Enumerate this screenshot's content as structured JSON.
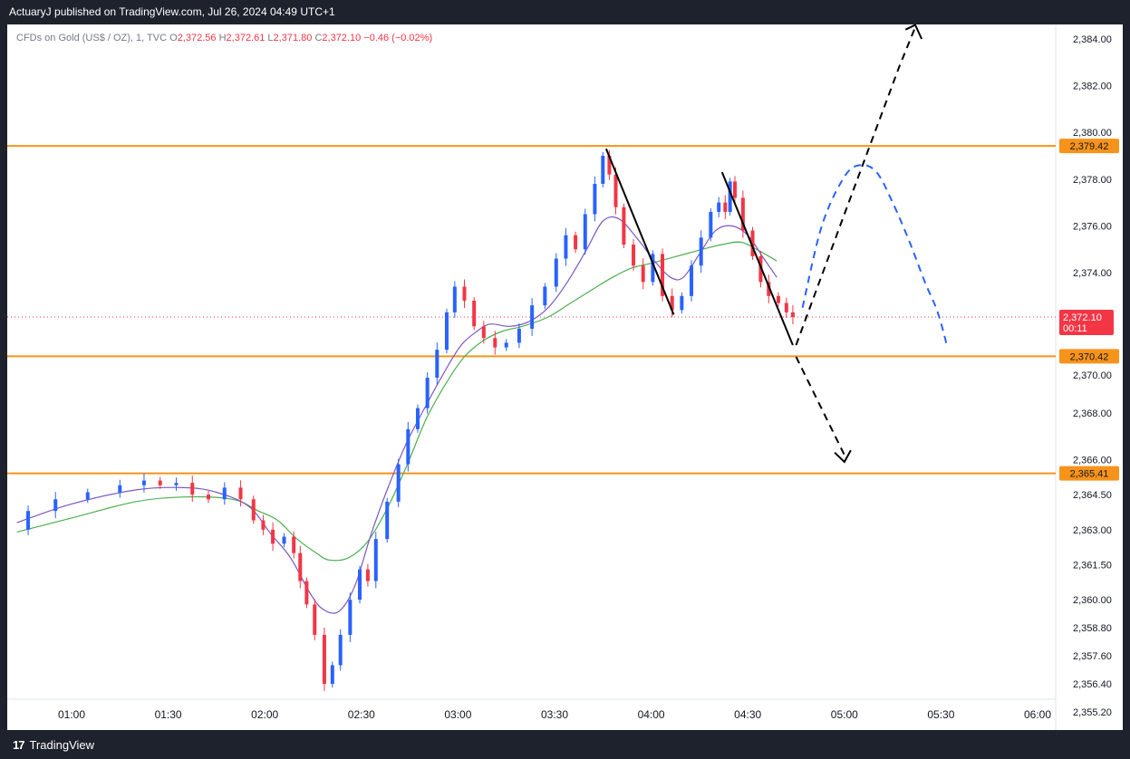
{
  "header": {
    "publisher_line": "ActuaryJ published on TradingView.com, Jul 26, 2024 04:49 UTC+1"
  },
  "legend": {
    "symbol": "CFDs on Gold (US$ / OZ), 1, TVC",
    "open_label": "O",
    "open": "2,372.56",
    "high_label": "H",
    "high": "2,372.61",
    "low_label": "L",
    "low": "2,371.80",
    "close_label": "C",
    "close": "2,372.10",
    "change": "−0.46 (−0.02%)"
  },
  "footer": {
    "brand": "TradingView",
    "logo_text": "17"
  },
  "colors": {
    "up": "#2962ff",
    "down": "#f23645",
    "level": "#f7931a",
    "ma_fast": "#7e57c2",
    "ma_slow": "#4caf50",
    "price_tag": "#f23645"
  },
  "chart_data": {
    "type": "line",
    "y_axis_ticks": [
      "2,384.00",
      "2,382.00",
      "2,380.00",
      "2,378.00",
      "2,376.00",
      "2,374.00",
      "2,370.00",
      "2,368.00",
      "2,366.00",
      "2,364.50",
      "2,363.00",
      "2,361.50",
      "2,360.00",
      "2,358.80",
      "2,357.60",
      "2,356.40",
      "2,355.20"
    ],
    "y_axis_tick_values": [
      2384.0,
      2382.0,
      2380.0,
      2378.0,
      2376.0,
      2374.0,
      2370.0,
      2368.0,
      2366.0,
      2364.5,
      2363.0,
      2361.5,
      2360.0,
      2358.8,
      2357.6,
      2356.4,
      2355.2
    ],
    "x_axis_ticks": [
      "01:00",
      "01:30",
      "02:00",
      "02:30",
      "03:00",
      "03:30",
      "04:00",
      "04:30",
      "05:00",
      "05:30",
      "06:00"
    ],
    "x_axis_tick_minutes": [
      60,
      90,
      120,
      150,
      180,
      210,
      240,
      270,
      300,
      330,
      360
    ],
    "levels": [
      {
        "label": "2,379.42",
        "value": 2379.42
      },
      {
        "label": "2,370.42",
        "value": 2370.42
      },
      {
        "label": "2,365.41",
        "value": 2365.41
      }
    ],
    "last_price": {
      "label": "2,372.10",
      "value": 2372.1,
      "countdown": "00:11"
    },
    "price_path": [
      [
        43,
        2363.0
      ],
      [
        50,
        2363.8
      ],
      [
        60,
        2364.3
      ],
      [
        70,
        2364.6
      ],
      [
        80,
        2364.9
      ],
      [
        85,
        2365.1
      ],
      [
        90,
        2364.9
      ],
      [
        95,
        2365.0
      ],
      [
        100,
        2364.5
      ],
      [
        105,
        2364.3
      ],
      [
        110,
        2364.8
      ],
      [
        115,
        2364.3
      ],
      [
        118,
        2363.4
      ],
      [
        121,
        2363.0
      ],
      [
        124,
        2362.4
      ],
      [
        128,
        2362.7
      ],
      [
        130,
        2362.0
      ],
      [
        132,
        2360.8
      ],
      [
        134,
        2359.8
      ],
      [
        137,
        2358.5
      ],
      [
        140,
        2356.4
      ],
      [
        142,
        2357.2
      ],
      [
        145,
        2358.5
      ],
      [
        148,
        2360.0
      ],
      [
        151,
        2361.3
      ],
      [
        153,
        2360.8
      ],
      [
        156,
        2362.6
      ],
      [
        160,
        2364.2
      ],
      [
        163,
        2365.8
      ],
      [
        166,
        2367.3
      ],
      [
        169,
        2368.2
      ],
      [
        172,
        2369.5
      ],
      [
        175,
        2370.7
      ],
      [
        178,
        2372.3
      ],
      [
        180,
        2373.4
      ],
      [
        184,
        2372.8
      ],
      [
        186,
        2371.7
      ],
      [
        190,
        2371.2
      ],
      [
        193,
        2370.8
      ],
      [
        197,
        2371.0
      ],
      [
        201,
        2371.6
      ],
      [
        205,
        2372.6
      ],
      [
        209,
        2373.4
      ],
      [
        212,
        2374.6
      ],
      [
        215,
        2375.6
      ],
      [
        218,
        2375.0
      ],
      [
        221,
        2376.5
      ],
      [
        224,
        2377.8
      ],
      [
        226,
        2379.0
      ],
      [
        228,
        2378.2
      ],
      [
        230,
        2376.8
      ],
      [
        233,
        2375.2
      ],
      [
        236,
        2374.3
      ],
      [
        239,
        2373.6
      ],
      [
        242,
        2374.8
      ],
      [
        245,
        2373.0
      ],
      [
        248,
        2372.4
      ],
      [
        251,
        2373.0
      ],
      [
        254,
        2374.3
      ],
      [
        257,
        2375.5
      ],
      [
        260,
        2376.6
      ],
      [
        262,
        2377.0
      ],
      [
        264,
        2376.6
      ],
      [
        265,
        2377.9
      ],
      [
        267,
        2377.2
      ],
      [
        270,
        2375.8
      ],
      [
        273,
        2374.7
      ],
      [
        275,
        2373.6
      ],
      [
        278,
        2373.0
      ],
      [
        281,
        2372.7
      ],
      [
        283,
        2372.3
      ],
      [
        285,
        2372.1
      ]
    ],
    "ma_fast_path": [
      [
        43,
        2363.3
      ],
      [
        60,
        2364.1
      ],
      [
        80,
        2364.7
      ],
      [
        95,
        2364.8
      ],
      [
        105,
        2364.6
      ],
      [
        115,
        2364.0
      ],
      [
        122,
        2362.8
      ],
      [
        128,
        2361.8
      ],
      [
        134,
        2360.3
      ],
      [
        138,
        2359.6
      ],
      [
        143,
        2359.5
      ],
      [
        148,
        2360.6
      ],
      [
        153,
        2362.8
      ],
      [
        158,
        2364.7
      ],
      [
        164,
        2366.7
      ],
      [
        170,
        2368.3
      ],
      [
        176,
        2369.8
      ],
      [
        181,
        2370.9
      ],
      [
        186,
        2371.5
      ],
      [
        190,
        2371.8
      ],
      [
        196,
        2371.7
      ],
      [
        202,
        2371.9
      ],
      [
        208,
        2372.5
      ],
      [
        214,
        2373.6
      ],
      [
        220,
        2375.0
      ],
      [
        225,
        2376.2
      ],
      [
        230,
        2376.3
      ],
      [
        236,
        2375.4
      ],
      [
        241,
        2374.5
      ],
      [
        246,
        2373.8
      ],
      [
        250,
        2373.8
      ],
      [
        255,
        2374.8
      ],
      [
        260,
        2375.8
      ],
      [
        265,
        2376.0
      ],
      [
        270,
        2375.6
      ],
      [
        275,
        2374.6
      ],
      [
        279,
        2373.8
      ]
    ],
    "ma_slow_path": [
      [
        43,
        2362.9
      ],
      [
        60,
        2363.5
      ],
      [
        80,
        2364.2
      ],
      [
        95,
        2364.4
      ],
      [
        110,
        2364.3
      ],
      [
        118,
        2363.8
      ],
      [
        124,
        2363.4
      ],
      [
        130,
        2362.6
      ],
      [
        136,
        2362.0
      ],
      [
        140,
        2361.7
      ],
      [
        146,
        2361.8
      ],
      [
        152,
        2362.5
      ],
      [
        158,
        2363.9
      ],
      [
        164,
        2365.7
      ],
      [
        170,
        2367.7
      ],
      [
        176,
        2369.2
      ],
      [
        182,
        2370.4
      ],
      [
        188,
        2371.1
      ],
      [
        194,
        2371.5
      ],
      [
        200,
        2371.7
      ],
      [
        208,
        2372.1
      ],
      [
        215,
        2372.7
      ],
      [
        222,
        2373.3
      ],
      [
        228,
        2373.8
      ],
      [
        234,
        2374.2
      ],
      [
        240,
        2374.4
      ],
      [
        248,
        2374.7
      ],
      [
        256,
        2375.0
      ],
      [
        262,
        2375.2
      ],
      [
        268,
        2375.3
      ],
      [
        274,
        2374.9
      ],
      [
        279,
        2374.5
      ]
    ],
    "drawings": {
      "trend_lines": [
        [
          [
            226,
            2379.3
          ],
          [
            247,
            2372.2
          ]
        ],
        [
          [
            262,
            2378.3
          ],
          [
            284,
            2370.9
          ]
        ]
      ],
      "bull_path": [
        [
          285,
          2370.9
        ],
        [
          300,
          2376.5
        ],
        [
          317,
          2382.8
        ],
        [
          322,
          2384.5
        ]
      ],
      "bull_arrow_tip": [
        [
          319,
          2384.4
        ],
        [
          322,
          2384.6
        ],
        [
          324,
          2384.0
        ]
      ],
      "bear_path": [
        [
          285,
          2370.4
        ],
        [
          300,
          2366.2
        ]
      ],
      "bear_arrow_tip": [
        [
          297,
          2366.3
        ],
        [
          300,
          2365.9
        ],
        [
          302,
          2366.4
        ]
      ],
      "arc_path": [
        [
          287,
          2372.5
        ],
        [
          293,
          2376.0
        ],
        [
          300,
          2378.1
        ],
        [
          305,
          2378.6
        ],
        [
          310,
          2378.3
        ],
        [
          315,
          2377.0
        ],
        [
          320,
          2375.4
        ],
        [
          325,
          2373.6
        ],
        [
          329,
          2372.3
        ],
        [
          332,
          2370.8
        ]
      ]
    }
  }
}
